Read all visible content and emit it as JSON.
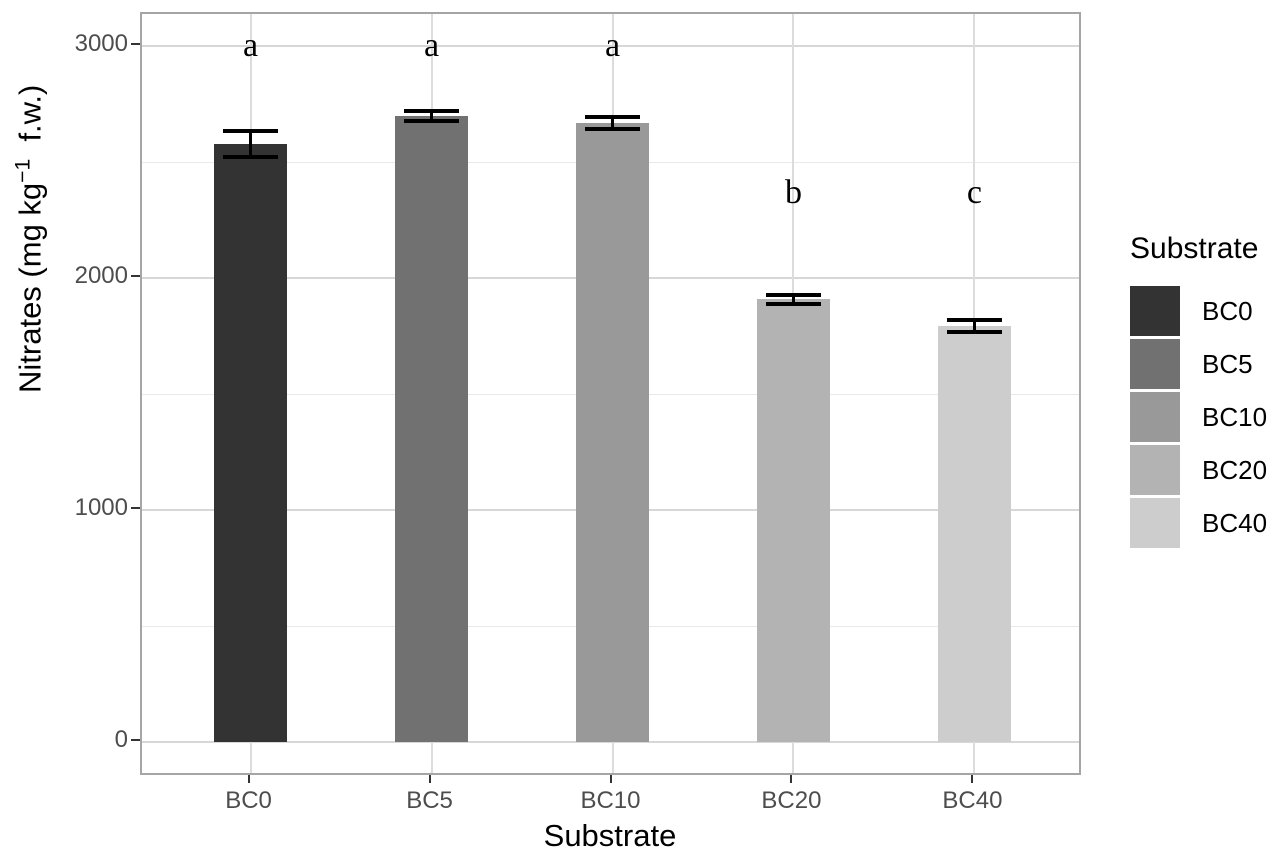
{
  "chart_data": {
    "type": "bar",
    "title": "",
    "xlabel": "Substrate",
    "ylabel_text": "Nitrates (mg kg−1 f.w.)",
    "ylabel_parts": {
      "prefix": "Nitrates (mg kg",
      "sup": "−1",
      "suffix": "  f.w.)"
    },
    "categories": [
      "BC0",
      "BC5",
      "BC10",
      "BC20",
      "BC40"
    ],
    "values": [
      2580,
      2700,
      2670,
      1910,
      1795
    ],
    "errors": [
      55,
      20,
      25,
      20,
      25
    ],
    "sig_letters": [
      {
        "label": "a",
        "y": 3000
      },
      {
        "label": "a",
        "y": 3000
      },
      {
        "label": "a",
        "y": 3000
      },
      {
        "label": "b",
        "y": 2370
      },
      {
        "label": "c",
        "y": 2370
      }
    ],
    "bar_colors": [
      "#333333",
      "#717171",
      "#999999",
      "#b3b3b3",
      "#cdcdcd"
    ],
    "y_ticks": [
      0,
      1000,
      2000,
      3000
    ],
    "y_minor_ticks": [
      500,
      1500,
      2500
    ],
    "ylim": [
      -150,
      3140
    ],
    "grid": true,
    "colors": {
      "panel_border": "#a5a5a5",
      "grid_major": "#d7d7d7",
      "grid_minor": "#e9e9e9",
      "grid_vertical": "#dcdcdc",
      "axis_text": "#4d4d4d",
      "error_bar": "#000000",
      "background": "#ffffff"
    },
    "legend": {
      "title": "Substrate",
      "position": "right",
      "entries": [
        {
          "label": "BC0",
          "color": "#333333"
        },
        {
          "label": "BC5",
          "color": "#717171"
        },
        {
          "label": "BC10",
          "color": "#999999"
        },
        {
          "label": "BC20",
          "color": "#b3b3b3"
        },
        {
          "label": "BC40",
          "color": "#cdcdcd"
        }
      ]
    }
  }
}
